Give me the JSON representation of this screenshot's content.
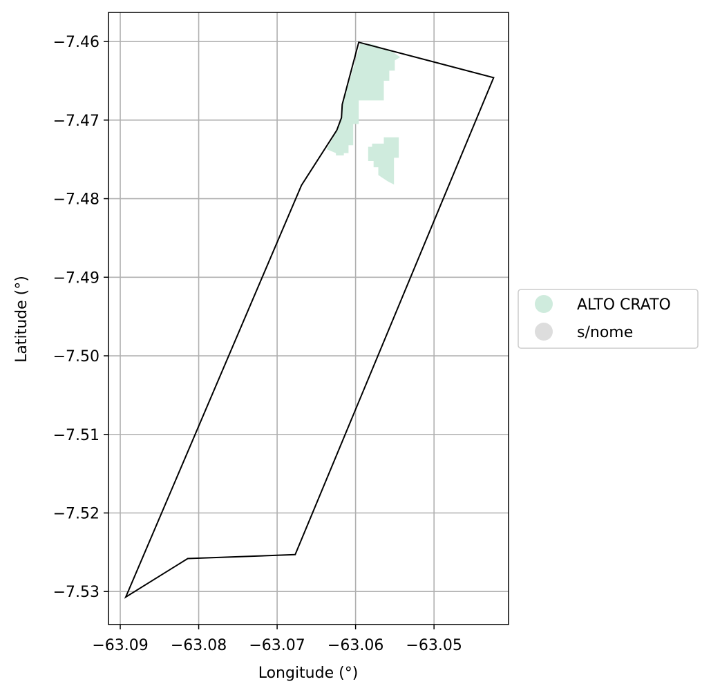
{
  "chart_data": {
    "type": "map",
    "xlabel": "Longitude (°)",
    "ylabel": "Latitude (°)",
    "xlim": [
      -63.0915,
      -63.0405
    ],
    "ylim": [
      -7.5342,
      -7.4563
    ],
    "xticks": [
      -63.09,
      -63.08,
      -63.07,
      -63.06,
      -63.05
    ],
    "yticks": [
      -7.46,
      -7.47,
      -7.48,
      -7.49,
      -7.5,
      -7.51,
      -7.52,
      -7.53
    ],
    "xtick_labels": [
      "−63.09",
      "−63.08",
      "−63.07",
      "−63.06",
      "−63.05"
    ],
    "ytick_labels": [
      "−7.46",
      "−7.47",
      "−7.48",
      "−7.49",
      "−7.50",
      "−7.51",
      "−7.52",
      "−7.53"
    ],
    "grid": true,
    "legend_position": "right",
    "legend": [
      {
        "label": "ALTO CRATO",
        "color": "#cfebdd"
      },
      {
        "label": "s/nome",
        "color": "#dddddd"
      }
    ],
    "boundary": [
      [
        -63.0596,
        -7.4601
      ],
      [
        -63.0424,
        -7.4646
      ],
      [
        -63.0677,
        -7.5253
      ],
      [
        -63.0814,
        -7.5258
      ],
      [
        -63.0893,
        -7.5307
      ],
      [
        -63.0669,
        -7.4783
      ],
      [
        -63.0624,
        -7.4713
      ],
      [
        -63.0618,
        -7.4697
      ],
      [
        -63.0617,
        -7.468
      ]
    ],
    "regions": [
      {
        "name": "ALTO CRATO",
        "polygons": [
          [
            [
              -63.0594,
              -7.4603
            ],
            [
              -63.058,
              -7.4603
            ],
            [
              -63.0555,
              -7.4612
            ],
            [
              -63.0543,
              -7.462
            ],
            [
              -63.055,
              -7.4624
            ],
            [
              -63.055,
              -7.4637
            ],
            [
              -63.0557,
              -7.4637
            ],
            [
              -63.0557,
              -7.465
            ],
            [
              -63.0564,
              -7.465
            ],
            [
              -63.0564,
              -7.4675
            ],
            [
              -63.0596,
              -7.4675
            ],
            [
              -63.0596,
              -7.4705
            ],
            [
              -63.0603,
              -7.4705
            ],
            [
              -63.0603,
              -7.4732
            ],
            [
              -63.0609,
              -7.4732
            ],
            [
              -63.0609,
              -7.4742
            ],
            [
              -63.0615,
              -7.4742
            ],
            [
              -63.0615,
              -7.4745
            ],
            [
              -63.0625,
              -7.4745
            ],
            [
              -63.0625,
              -7.4742
            ],
            [
              -63.0637,
              -7.4737
            ],
            [
              -63.0624,
              -7.4714
            ],
            [
              -63.0619,
              -7.4697
            ],
            [
              -63.0617,
              -7.4682
            ]
          ],
          [
            [
              -63.0561,
              -7.4722
            ],
            [
              -63.0545,
              -7.4722
            ],
            [
              -63.0545,
              -7.4748
            ],
            [
              -63.0551,
              -7.4748
            ],
            [
              -63.0551,
              -7.4782
            ],
            [
              -63.0559,
              -7.4778
            ],
            [
              -63.0571,
              -7.477
            ],
            [
              -63.0571,
              -7.476
            ],
            [
              -63.0577,
              -7.476
            ],
            [
              -63.0577,
              -7.4752
            ],
            [
              -63.0584,
              -7.4752
            ],
            [
              -63.0584,
              -7.4734
            ],
            [
              -63.0579,
              -7.4734
            ],
            [
              -63.0579,
              -7.473
            ],
            [
              -63.0564,
              -7.473
            ],
            [
              -63.0564,
              -7.4722
            ]
          ]
        ]
      }
    ]
  }
}
